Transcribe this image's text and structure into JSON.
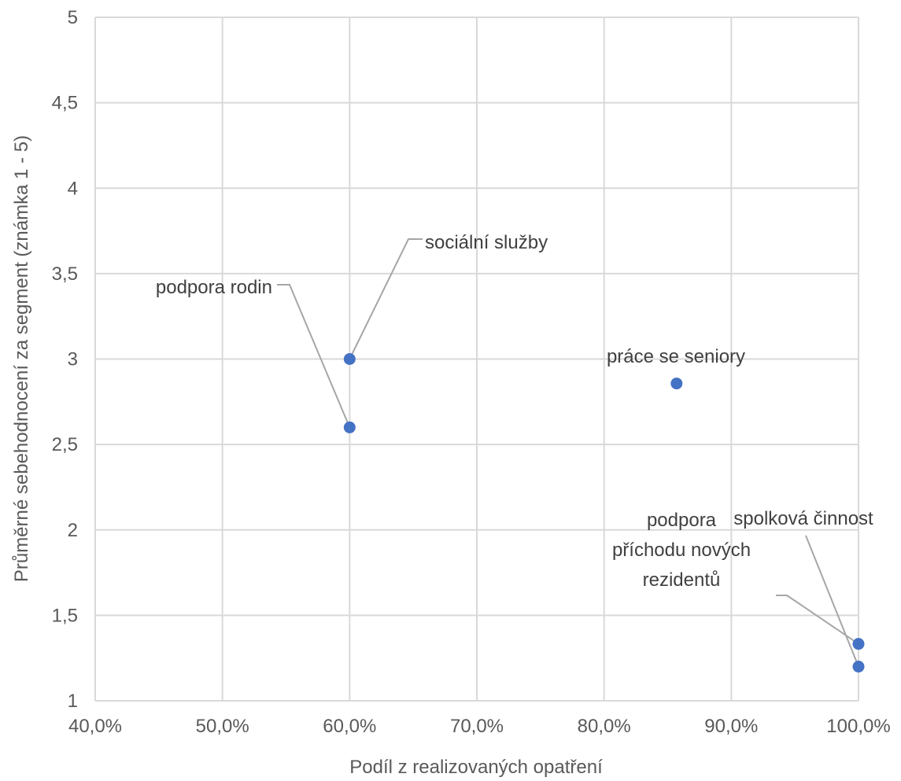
{
  "chart_data": {
    "type": "scatter",
    "title": "",
    "xlabel": "Podíl z realizovaných opatření",
    "ylabel": "Průměrné sebehodnocení za segment (známka 1 - 5)",
    "xlim": [
      0.4,
      1.0
    ],
    "ylim": [
      1,
      5
    ],
    "x_ticks": [
      0.4,
      0.5,
      0.6,
      0.7,
      0.8,
      0.9,
      1.0
    ],
    "x_tick_labels": [
      "40,0%",
      "50,0%",
      "60,0%",
      "70,0%",
      "80,0%",
      "90,0%",
      "100,0%"
    ],
    "y_ticks": [
      1,
      1.5,
      2,
      2.5,
      3,
      3.5,
      4,
      4.5,
      5
    ],
    "y_tick_labels": [
      "1",
      "1,5",
      "2",
      "2,5",
      "3",
      "3,5",
      "4",
      "4,5",
      "5"
    ],
    "grid": true,
    "legend": "none",
    "marker_color": "#4472C4",
    "points": [
      {
        "label": "sociální služby",
        "x": 0.6,
        "y": 3.0
      },
      {
        "label": "podpora rodin",
        "x": 0.6,
        "y": 2.6
      },
      {
        "label": "práce se seniory",
        "x": 0.857,
        "y": 2.857
      },
      {
        "label": "spolková činnost",
        "x": 1.0,
        "y": 1.2
      },
      {
        "label": [
          "podpora",
          "příchodu nových",
          "rezidentů"
        ],
        "x": 1.0,
        "y": 1.333
      }
    ]
  }
}
